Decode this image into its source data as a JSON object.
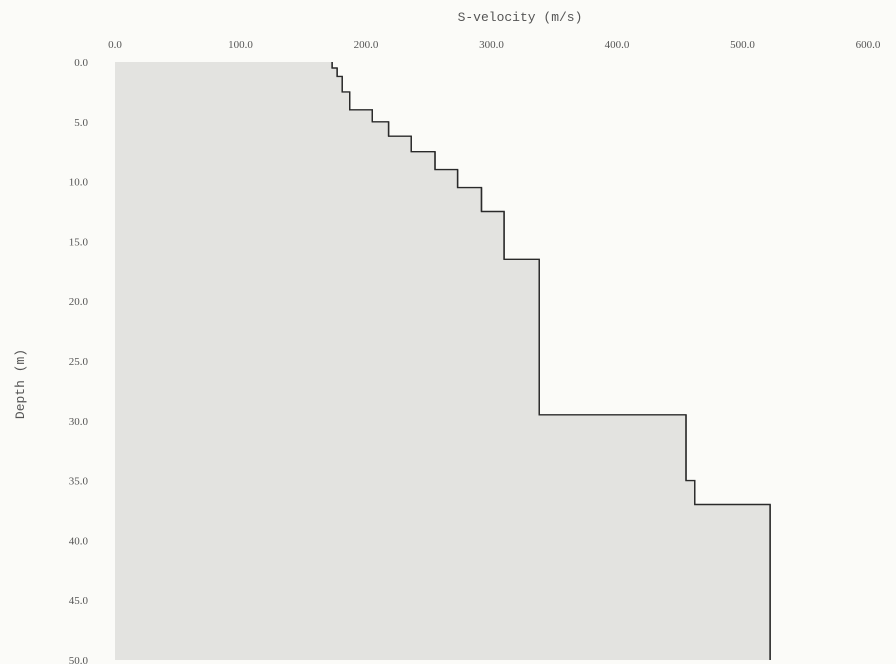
{
  "chart_data": {
    "type": "area",
    "title": "",
    "xlabel": "S-velocity (m/s)",
    "ylabel": "Depth (m)",
    "xlim": [
      0,
      600
    ],
    "ylim": [
      0,
      50
    ],
    "y_inverted": true,
    "x_axis_position": "top",
    "grid": false,
    "x_ticks": [
      "0.0",
      "100.0",
      "200.0",
      "300.0",
      "400.0",
      "500.0",
      "600.0"
    ],
    "y_ticks": [
      "0.0",
      "5.0",
      "10.0",
      "15.0",
      "20.0",
      "25.0",
      "30.0",
      "35.0",
      "40.0",
      "45.0",
      "50.0"
    ],
    "colors": {
      "fill": "#e3e3e0",
      "line": "#2a2a2a"
    },
    "series": [
      {
        "layers": [
          {
            "top": 0.0,
            "bottom": 0.5,
            "velocity": 173
          },
          {
            "top": 0.5,
            "bottom": 1.2,
            "velocity": 177
          },
          {
            "top": 1.2,
            "bottom": 2.5,
            "velocity": 181
          },
          {
            "top": 2.5,
            "bottom": 4.0,
            "velocity": 187
          },
          {
            "top": 4.0,
            "bottom": 5.0,
            "velocity": 205
          },
          {
            "top": 5.0,
            "bottom": 6.2,
            "velocity": 218
          },
          {
            "top": 6.2,
            "bottom": 7.5,
            "velocity": 236
          },
          {
            "top": 7.5,
            "bottom": 9.0,
            "velocity": 255
          },
          {
            "top": 9.0,
            "bottom": 10.5,
            "velocity": 273
          },
          {
            "top": 10.5,
            "bottom": 12.5,
            "velocity": 292
          },
          {
            "top": 12.5,
            "bottom": 16.5,
            "velocity": 310
          },
          {
            "top": 16.5,
            "bottom": 29.5,
            "velocity": 338
          },
          {
            "top": 29.5,
            "bottom": 35.0,
            "velocity": 455
          },
          {
            "top": 35.0,
            "bottom": 37.0,
            "velocity": 462
          },
          {
            "top": 37.0,
            "bottom": 50.0,
            "velocity": 522
          }
        ]
      }
    ]
  }
}
